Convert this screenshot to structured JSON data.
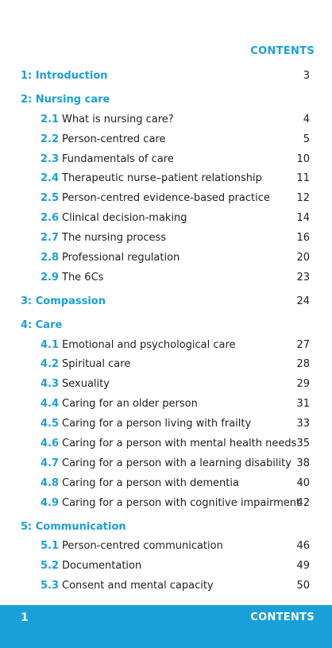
{
  "heading": "CONTENTS",
  "toc": [
    {
      "type": "chapter",
      "title": "1: Introduction",
      "page": "3"
    },
    {
      "type": "chapter",
      "title": "2: Nursing care",
      "page": ""
    },
    {
      "type": "section",
      "num": "2.1",
      "title": "What is nursing care?",
      "page": "4"
    },
    {
      "type": "section",
      "num": "2.2",
      "title": "Person-centred care",
      "page": "5"
    },
    {
      "type": "section",
      "num": "2.3",
      "title": "Fundamentals of care",
      "page": "10"
    },
    {
      "type": "section",
      "num": "2.4",
      "title": "Therapeutic nurse–patient relationship",
      "page": "11"
    },
    {
      "type": "section",
      "num": "2.5",
      "title": "Person-centred evidence-based practice",
      "page": "12"
    },
    {
      "type": "section",
      "num": "2.6",
      "title": "Clinical decision-making",
      "page": "14"
    },
    {
      "type": "section",
      "num": "2.7",
      "title": "The nursing process",
      "page": "16"
    },
    {
      "type": "section",
      "num": "2.8",
      "title": "Professional regulation",
      "page": "20"
    },
    {
      "type": "section",
      "num": "2.9",
      "title": "The 6Cs",
      "page": "23"
    },
    {
      "type": "chapter",
      "title": "3: Compassion",
      "page": "24"
    },
    {
      "type": "chapter",
      "title": "4: Care",
      "page": ""
    },
    {
      "type": "section",
      "num": "4.1",
      "title": "Emotional and psychological care",
      "page": "27"
    },
    {
      "type": "section",
      "num": "4.2",
      "title": "Spiritual care",
      "page": "28"
    },
    {
      "type": "section",
      "num": "4.3",
      "title": "Sexuality",
      "page": "29"
    },
    {
      "type": "section",
      "num": "4.4",
      "title": "Caring for an older person",
      "page": "31"
    },
    {
      "type": "section",
      "num": "4.5",
      "title": "Caring for a person living with frailty",
      "page": "33"
    },
    {
      "type": "section",
      "num": "4.6",
      "title": "Caring for a person with mental health needs",
      "page": "35"
    },
    {
      "type": "section",
      "num": "4.7",
      "title": "Caring for a person with a learning disability",
      "page": "38"
    },
    {
      "type": "section",
      "num": "4.8",
      "title": "Caring for a person with dementia",
      "page": "40"
    },
    {
      "type": "section",
      "num": "4.9",
      "title": "Caring for a person with cognitive impairment",
      "page": "42"
    },
    {
      "type": "chapter",
      "title": "5: Communication",
      "page": ""
    },
    {
      "type": "section",
      "num": "5.1",
      "title": "Person-centred communication",
      "page": "46"
    },
    {
      "type": "section",
      "num": "5.2",
      "title": "Documentation",
      "page": "49"
    },
    {
      "type": "section",
      "num": "5.3",
      "title": "Consent and mental capacity",
      "page": "50"
    }
  ],
  "footer": {
    "page_number": "1",
    "label": "CONTENTS"
  },
  "colors": {
    "accent": "#1aa0d8",
    "text": "#1f1f1f",
    "footer_text": "#ffffff"
  }
}
